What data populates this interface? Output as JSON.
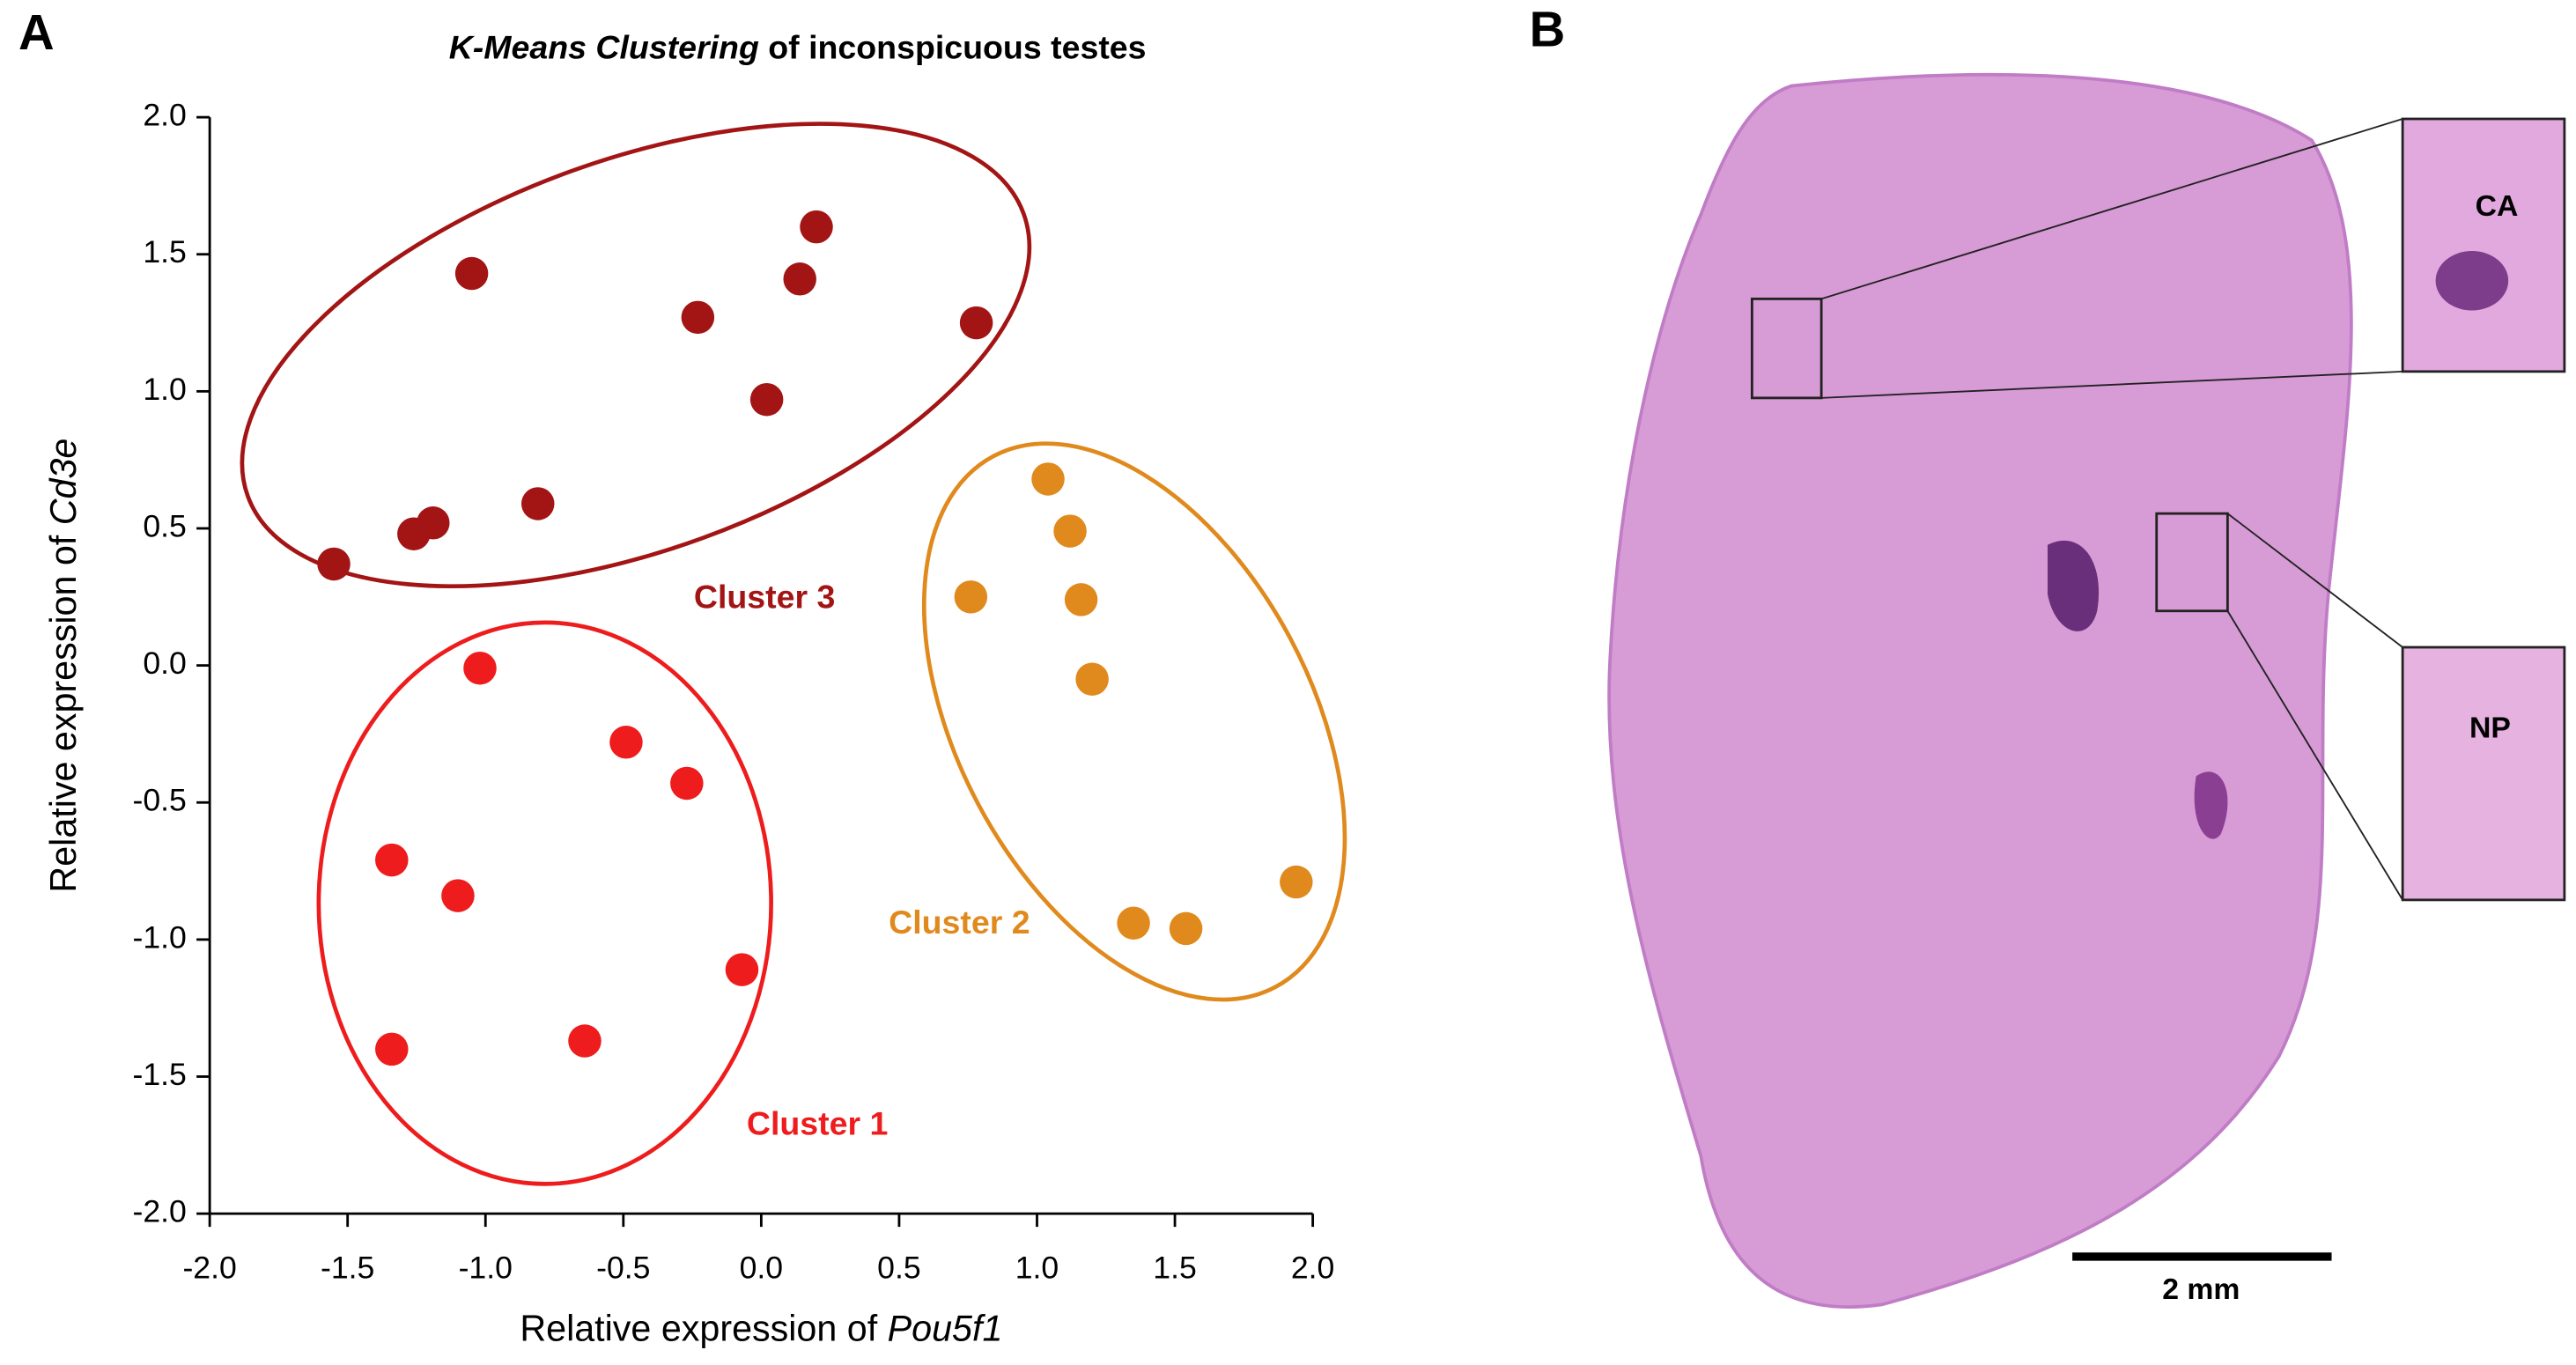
{
  "chart_data": {
    "type": "scatter",
    "panel_labels": [
      "A",
      "B"
    ],
    "title": [
      "K-Means Clustering",
      " of inconspicuous testes"
    ],
    "x_label": [
      "Relative expression of ",
      "Pou5f1"
    ],
    "y_label": [
      "Relative expression of ",
      "Cd3e"
    ],
    "xlim": [
      -2.0,
      2.0
    ],
    "ylim": [
      -2.0,
      2.0
    ],
    "xticks": [
      {
        "value": -2.0,
        "label": "-2.0"
      },
      {
        "value": -1.5,
        "label": "-1.5"
      },
      {
        "value": -1.0,
        "label": "-1.0"
      },
      {
        "value": -0.5,
        "label": "-0.5"
      },
      {
        "value": 0,
        "label": "0.0"
      },
      {
        "value": 0.5,
        "label": "0.5"
      },
      {
        "value": 1.0,
        "label": "1.0"
      },
      {
        "value": 1.5,
        "label": "1.5"
      },
      {
        "value": 2.0,
        "label": "2.0"
      }
    ],
    "yticks": [
      {
        "value": -2.0,
        "label": "-2.0"
      },
      {
        "value": -1.5,
        "label": "-1.5"
      },
      {
        "value": -1.0,
        "label": "-1.0"
      },
      {
        "value": -0.5,
        "label": "-0.5"
      },
      {
        "value": 0,
        "label": "0.0"
      },
      {
        "value": 0.5,
        "label": "0.5"
      },
      {
        "value": 1.0,
        "label": "1.0"
      },
      {
        "value": 1.5,
        "label": "1.5"
      },
      {
        "value": 2.0,
        "label": "2.0"
      }
    ],
    "series": [
      {
        "name": "Cluster 1",
        "color": "#ee1c1c",
        "x": [
          -1.02,
          -0.49,
          -0.27,
          -1.34,
          -1.1,
          -0.07,
          -1.34,
          -0.64
        ],
        "values": [
          -0.01,
          -0.28,
          -0.43,
          -0.71,
          -0.84,
          -1.11,
          -1.4,
          -1.37
        ]
      },
      {
        "name": "Cluster 2",
        "color": "#e08a1e",
        "x": [
          1.04,
          1.12,
          0.76,
          1.16,
          1.2,
          1.35,
          1.54,
          1.94
        ],
        "values": [
          0.68,
          0.49,
          0.25,
          0.24,
          -0.05,
          -0.94,
          -0.96,
          -0.79
        ]
      },
      {
        "name": "Cluster 3",
        "color": "#a31515",
        "x": [
          -1.55,
          -1.26,
          -1.19,
          -1.05,
          -0.81,
          -0.23,
          0.02,
          0.14,
          0.2,
          0.78
        ],
        "values": [
          0.37,
          0.48,
          0.52,
          1.43,
          0.59,
          1.27,
          0.97,
          1.41,
          1.6,
          1.25
        ]
      }
    ],
    "image_labels": [
      "CA",
      "NP"
    ],
    "scale_bar": "2 mm"
  }
}
